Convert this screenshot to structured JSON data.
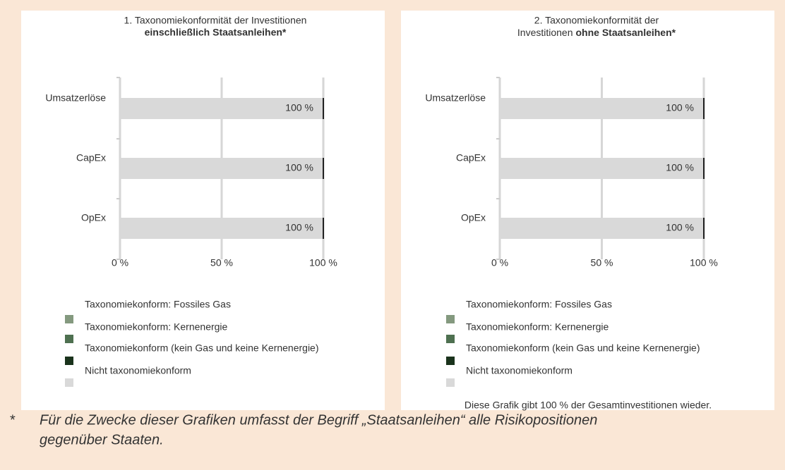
{
  "charts": [
    {
      "type": "stacked-bar-horizontal",
      "title": "1. Taxonomiekonformität der Investitionen",
      "title_bold": "einschließlich Staatsanleihen*",
      "categories": [
        "Umsatzerlöse",
        "CapEx",
        "OpEx"
      ],
      "series": [
        {
          "name": "Taxonomiekonform: Fossiles Gas",
          "color": "#84997f",
          "values": [
            0,
            0,
            0
          ]
        },
        {
          "name": "Taxonomiekonform: Kernenergie",
          "color": "#4e7050",
          "values": [
            0,
            0,
            0
          ]
        },
        {
          "name": "Taxonomiekonform (kein Gas und keine Kernenergie)",
          "color": "#1a331c",
          "values": [
            0,
            0,
            0
          ]
        },
        {
          "name": "Nicht taxonomiekonform",
          "color": "#d9d9d9",
          "values": [
            100,
            100,
            100
          ],
          "value_labels": [
            "100 %",
            "100 %",
            "100 %"
          ]
        }
      ],
      "xlim": [
        0,
        100
      ],
      "xticks": [
        {
          "value": 0,
          "label": "0 %"
        },
        {
          "value": 50,
          "label": "50 %"
        },
        {
          "value": 100,
          "label": "100 %"
        }
      ],
      "grid": true
    },
    {
      "type": "stacked-bar-horizontal",
      "title": "2. Taxonomiekonformität der",
      "title_line2": "Investitionen",
      "title_bold": "ohne Staatsanleihen*",
      "categories": [
        "Umsatzerlöse",
        "CapEx",
        "OpEx"
      ],
      "series": [
        {
          "name": "Taxonomiekonform: Fossiles Gas",
          "color": "#84997f",
          "values": [
            0,
            0,
            0
          ]
        },
        {
          "name": "Taxonomiekonform: Kernenergie",
          "color": "#4e7050",
          "values": [
            0,
            0,
            0
          ]
        },
        {
          "name": "Taxonomiekonform (kein Gas und keine Kernenergie)",
          "color": "#1a331c",
          "values": [
            0,
            0,
            0
          ]
        },
        {
          "name": "Nicht taxonomiekonform",
          "color": "#d9d9d9",
          "values": [
            100,
            100,
            100
          ],
          "value_labels": [
            "100 %",
            "100 %",
            "100 %"
          ]
        }
      ],
      "xlim": [
        0,
        100
      ],
      "xticks": [
        {
          "value": 0,
          "label": "0 %"
        },
        {
          "value": 50,
          "label": "50 %"
        },
        {
          "value": 100,
          "label": "100 %"
        }
      ],
      "grid": true,
      "note": "Diese Grafik gibt 100 % der Gesamtinvestitionen wieder."
    }
  ],
  "footnote": {
    "marker": "*",
    "lines": [
      "Für die Zwecke dieser Grafiken umfasst der Begriff „Staatsanleihen“ alle Risikopositionen",
      "gegenüber Staaten."
    ]
  }
}
